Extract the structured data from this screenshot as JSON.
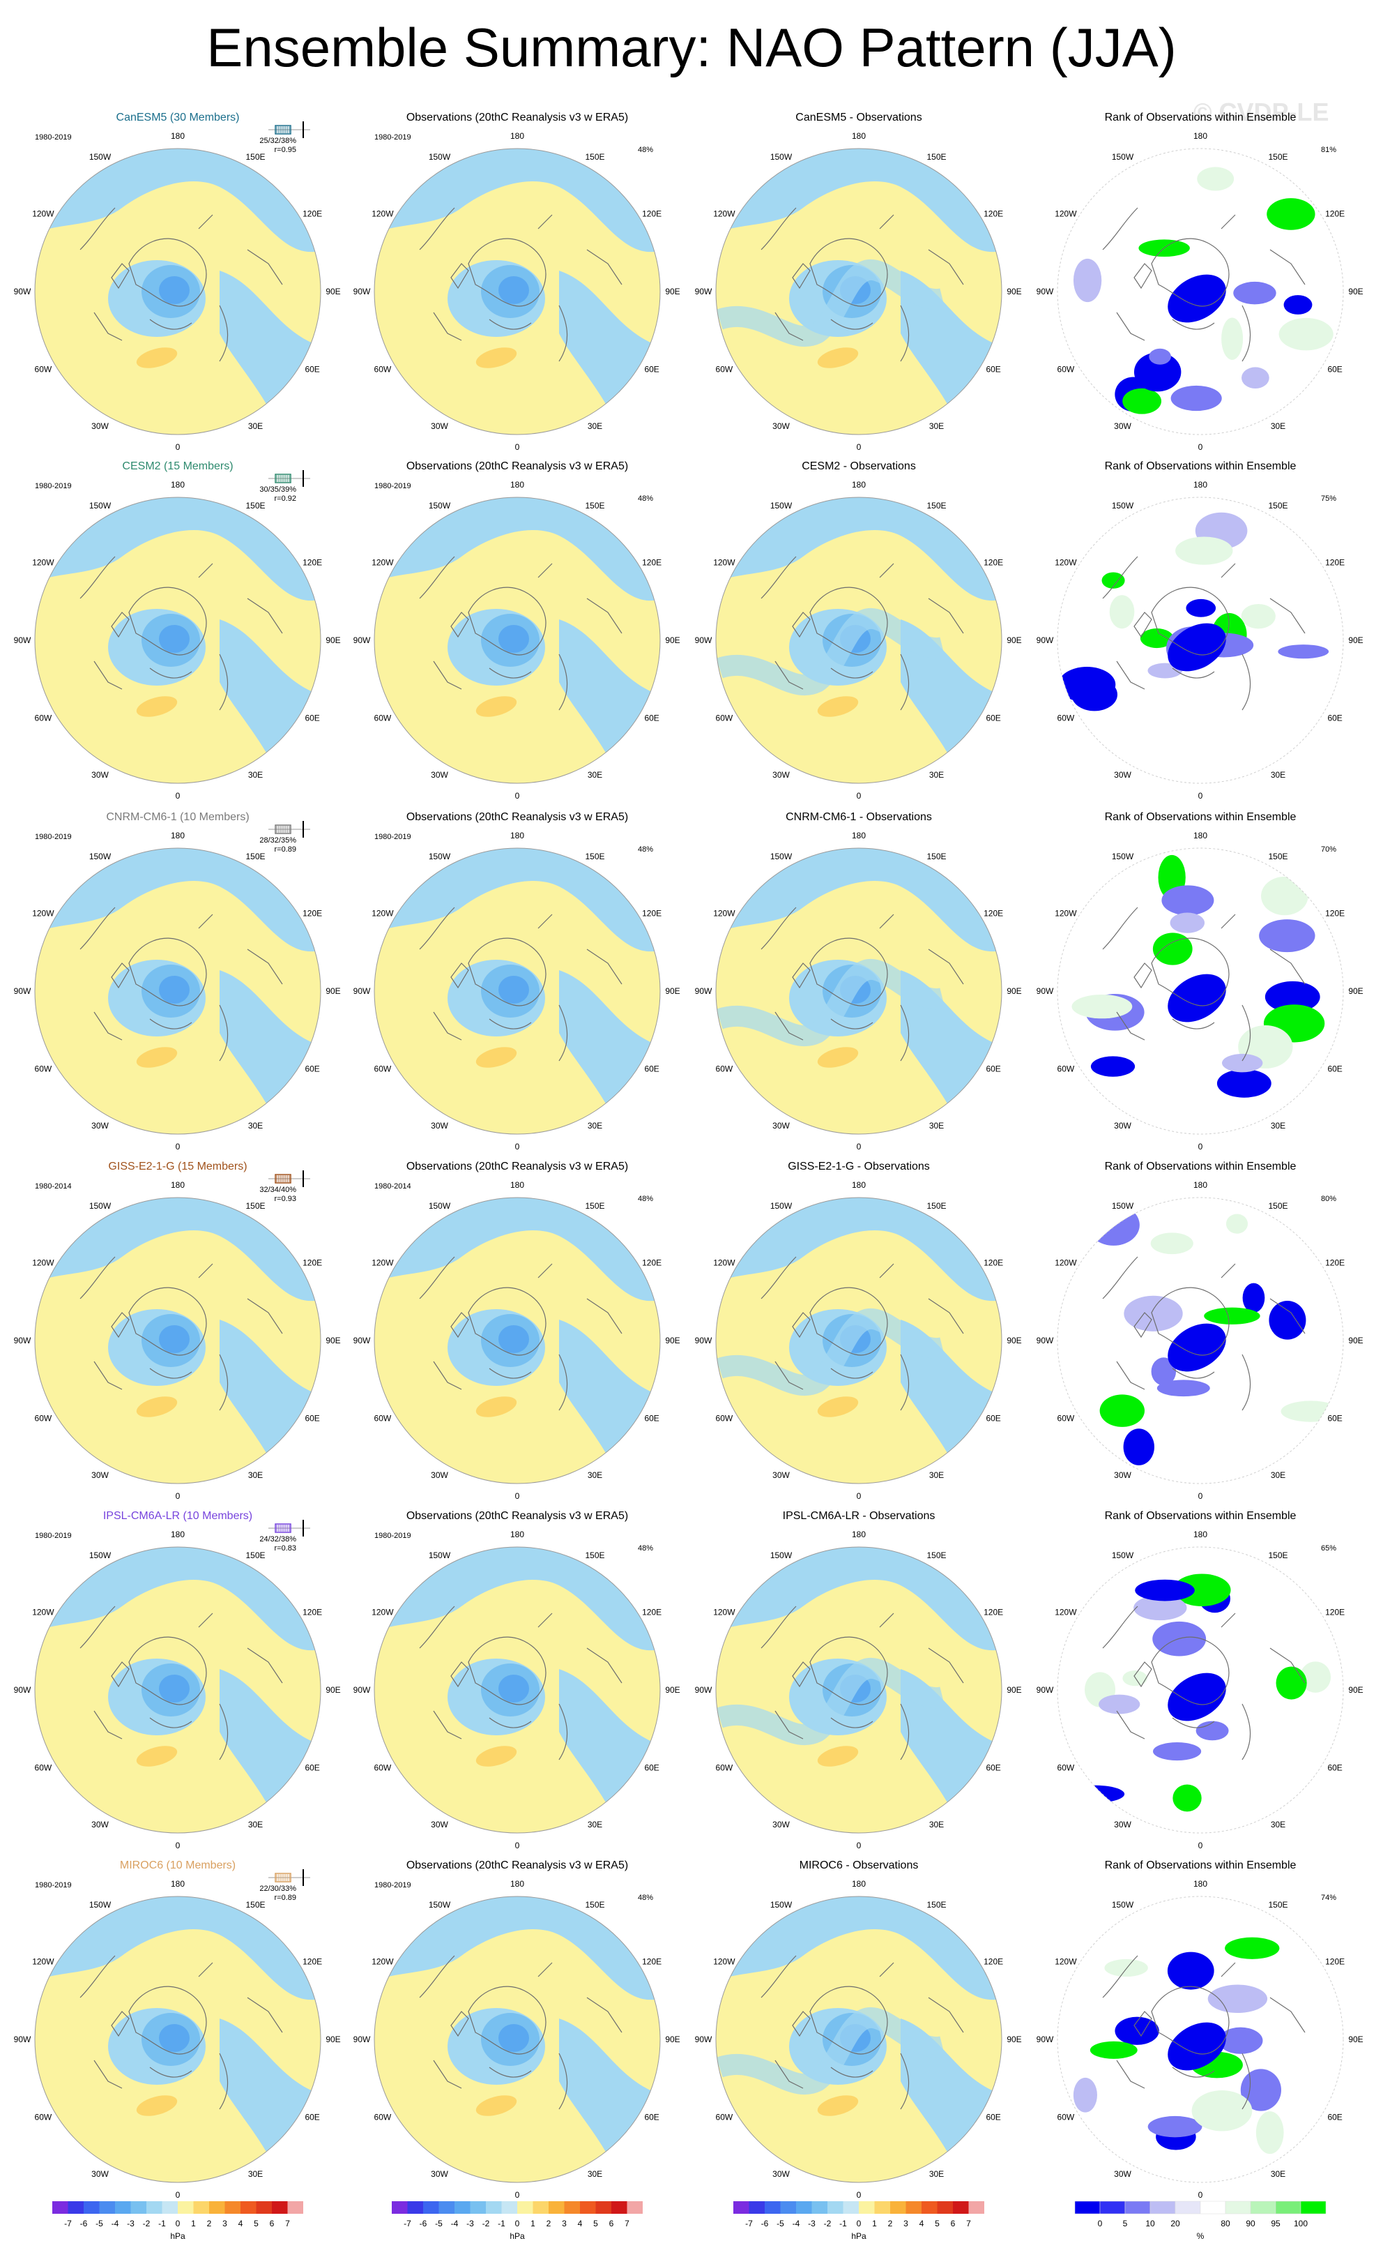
{
  "title": "Ensemble Summary: NAO Pattern (JJA)",
  "watermark": "© CVDP-LE",
  "lon_labels": [
    "180",
    "150E",
    "120E",
    "90E",
    "60E",
    "30E",
    "0",
    "30W",
    "60W",
    "90W",
    "120W",
    "150W"
  ],
  "obs_title": "Observations (20thC Reanalysis v3 w ERA5)",
  "rank_title": "Rank of Observations within Ensemble",
  "obs_pct": "48%",
  "colors": {
    "contour_scale": [
      "#7b2ce0",
      "#3a3ae8",
      "#3c66f0",
      "#4b8cf0",
      "#5aa8f0",
      "#78c0f0",
      "#a3d8f2",
      "#c6e6f4",
      "#fbf3a0",
      "#fcd66a",
      "#f9b23a",
      "#f5882a",
      "#ef5a20",
      "#e03a1c",
      "#d01818",
      "#f2a6a6"
    ],
    "rank_scale": [
      "#0000f0",
      "#3030f4",
      "#7a7af4",
      "#bdbdf4",
      "#e6e6f8",
      "#ffffff",
      "#e4f8e4",
      "#b9f4b9",
      "#79ee79",
      "#00f000"
    ],
    "ocean_blue": "#a3d8f2",
    "land_yellow": "#fbf3a0"
  },
  "colorbars": {
    "contour_labels": [
      "-7",
      "-6",
      "-5",
      "-4",
      "-3",
      "-2",
      "-1",
      "0",
      "1",
      "2",
      "3",
      "4",
      "5",
      "6",
      "7"
    ],
    "contour_unit": "hPa",
    "rank_labels": [
      "0",
      "5",
      "10",
      "20",
      "80",
      "90",
      "95",
      "100"
    ],
    "rank_unit": "%"
  },
  "rows": [
    {
      "model": "CanESM5 (30 Members)",
      "color": "#1b6f8c",
      "period": "1980-2019",
      "obs_period": "1980-2019",
      "stats": "25/32/38%",
      "r": "r=0.95",
      "diff_title": "CanESM5 - Observations",
      "rank_pct": "81%"
    },
    {
      "model": "CESM2 (15 Members)",
      "color": "#2e8a6e",
      "period": "1980-2019",
      "obs_period": "1980-2019",
      "stats": "30/35/39%",
      "r": "r=0.92",
      "diff_title": "CESM2 - Observations",
      "rank_pct": "75%"
    },
    {
      "model": "CNRM-CM6-1 (10 Members)",
      "color": "#7a7a7a",
      "period": "1980-2019",
      "obs_period": "1980-2019",
      "stats": "28/32/35%",
      "r": "r=0.89",
      "diff_title": "CNRM-CM6-1 - Observations",
      "rank_pct": "70%"
    },
    {
      "model": "GISS-E2-1-G (15 Members)",
      "color": "#a0521c",
      "period": "1980-2014",
      "obs_period": "1980-2014",
      "stats": "32/34/40%",
      "r": "r=0.93",
      "diff_title": "GISS-E2-1-G - Observations",
      "rank_pct": "80%"
    },
    {
      "model": "IPSL-CM6A-LR (10 Members)",
      "color": "#7744dd",
      "period": "1980-2019",
      "obs_period": "1980-2019",
      "stats": "24/32/38%",
      "r": "r=0.83",
      "diff_title": "IPSL-CM6A-LR - Observations",
      "rank_pct": "65%"
    },
    {
      "model": "MIROC6 (10 Members)",
      "color": "#d9a060",
      "period": "1980-2019",
      "obs_period": "1980-2019",
      "stats": "22/30/33%",
      "r": "r=0.89",
      "diff_title": "MIROC6 - Observations",
      "rank_pct": "74%"
    }
  ]
}
